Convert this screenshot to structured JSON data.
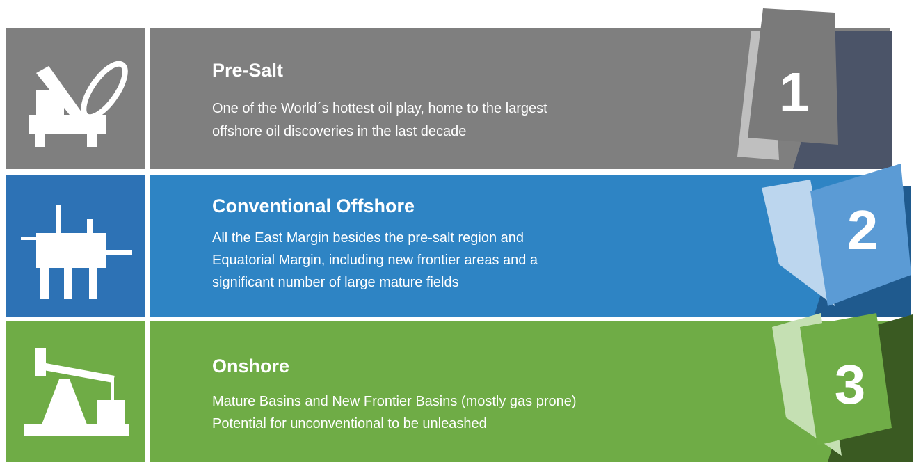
{
  "items": [
    {
      "number": "1",
      "title": "Pre-Salt",
      "lines": [
        "One of the World´s hottest oil play, home to the largest",
        "offshore oil discoveries in the last decade"
      ]
    },
    {
      "number": "2",
      "title": "Conventional Offshore",
      "lines": [
        "All the East Margin besides the pre-salt region and",
        "Equatorial Margin, including new frontier areas and a",
        "significant number of large mature fields"
      ]
    },
    {
      "number": "3",
      "title": "Onshore",
      "lines": [
        "Mature Basins and New Frontier Basins (mostly gas prone)",
        "Potential for unconventional to be unleashed"
      ]
    }
  ]
}
